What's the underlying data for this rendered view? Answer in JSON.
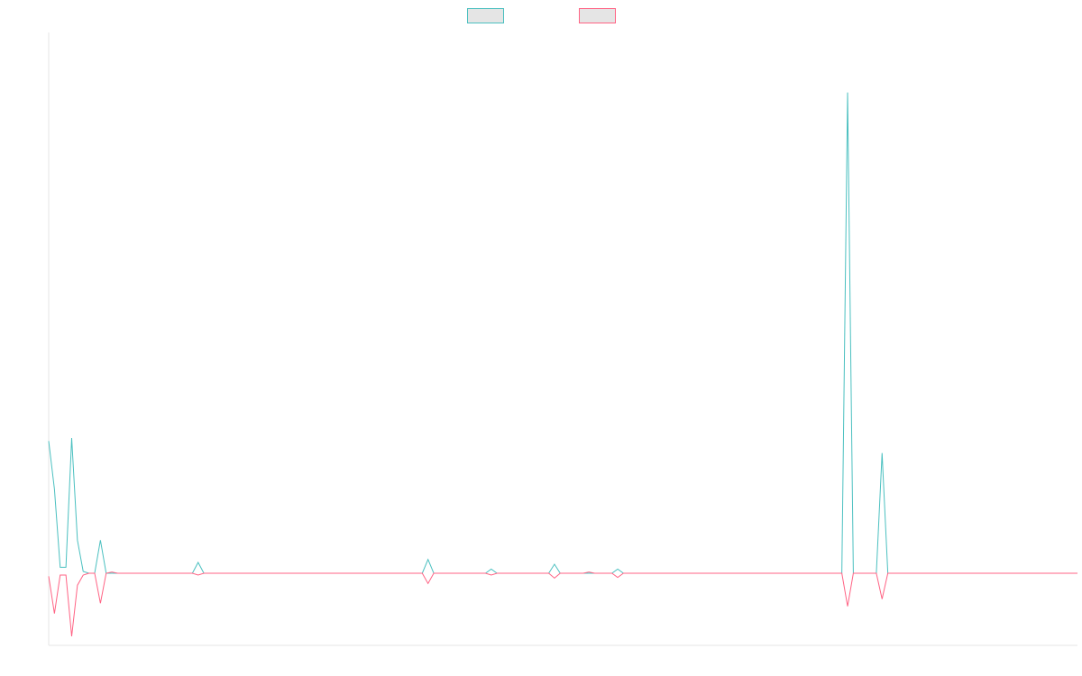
{
  "chart_data": {
    "type": "line",
    "title": "",
    "xlabel": "",
    "ylabel": "",
    "grid": false,
    "legend_position": "top-center",
    "x_count": 180,
    "ylim": [
      -12,
      90
    ],
    "series": [
      {
        "color": "#4bc0c0",
        "fill": "#e5e5e5",
        "points": [
          [
            0,
            22.0
          ],
          [
            1,
            14.0
          ],
          [
            2,
            1.0
          ],
          [
            3,
            1.0
          ],
          [
            4,
            22.5
          ],
          [
            5,
            5.5
          ],
          [
            6,
            0.3
          ],
          [
            7,
            0.0
          ],
          [
            8,
            0.0
          ],
          [
            9,
            5.5
          ],
          [
            10,
            0.0
          ],
          [
            11,
            0.0
          ],
          [
            12,
            0.0
          ],
          [
            25,
            0.0
          ],
          [
            26,
            1.8
          ],
          [
            27,
            0.0
          ],
          [
            65,
            0.0
          ],
          [
            66,
            2.3
          ],
          [
            67,
            0.0
          ],
          [
            76,
            0.0
          ],
          [
            77,
            0.7
          ],
          [
            78,
            0.0
          ],
          [
            87,
            0.0
          ],
          [
            88,
            1.5
          ],
          [
            89,
            0.0
          ],
          [
            98,
            0.0
          ],
          [
            99,
            0.7
          ],
          [
            100,
            0.0
          ],
          [
            138,
            0.0
          ],
          [
            139,
            80.0
          ],
          [
            140,
            0.0
          ],
          [
            144,
            0.0
          ],
          [
            145,
            20.0
          ],
          [
            146,
            0.0
          ],
          [
            179,
            0.0
          ]
        ]
      },
      {
        "color": "#ff6384",
        "fill": "#e5e5e5",
        "points": [
          [
            0,
            -0.5
          ],
          [
            1,
            -6.7
          ],
          [
            2,
            -0.3
          ],
          [
            3,
            -0.3
          ],
          [
            4,
            -10.5
          ],
          [
            5,
            -2.0
          ],
          [
            6,
            -0.3
          ],
          [
            7,
            0.0
          ],
          [
            8,
            0.0
          ],
          [
            9,
            -5.0
          ],
          [
            10,
            0.0
          ],
          [
            11,
            0.2
          ],
          [
            12,
            0.0
          ],
          [
            25,
            0.0
          ],
          [
            26,
            -0.3
          ],
          [
            27,
            0.0
          ],
          [
            65,
            0.0
          ],
          [
            66,
            -1.7
          ],
          [
            67,
            0.0
          ],
          [
            76,
            0.0
          ],
          [
            77,
            -0.3
          ],
          [
            78,
            0.0
          ],
          [
            87,
            0.0
          ],
          [
            88,
            -0.8
          ],
          [
            89,
            0.0
          ],
          [
            93,
            0.0
          ],
          [
            94,
            0.2
          ],
          [
            95,
            0.0
          ],
          [
            98,
            0.0
          ],
          [
            99,
            -0.7
          ],
          [
            100,
            0.0
          ],
          [
            138,
            0.0
          ],
          [
            139,
            -5.5
          ],
          [
            140,
            0.0
          ],
          [
            144,
            0.0
          ],
          [
            145,
            -4.3
          ],
          [
            146,
            0.0
          ],
          [
            179,
            0.0
          ]
        ]
      }
    ]
  }
}
